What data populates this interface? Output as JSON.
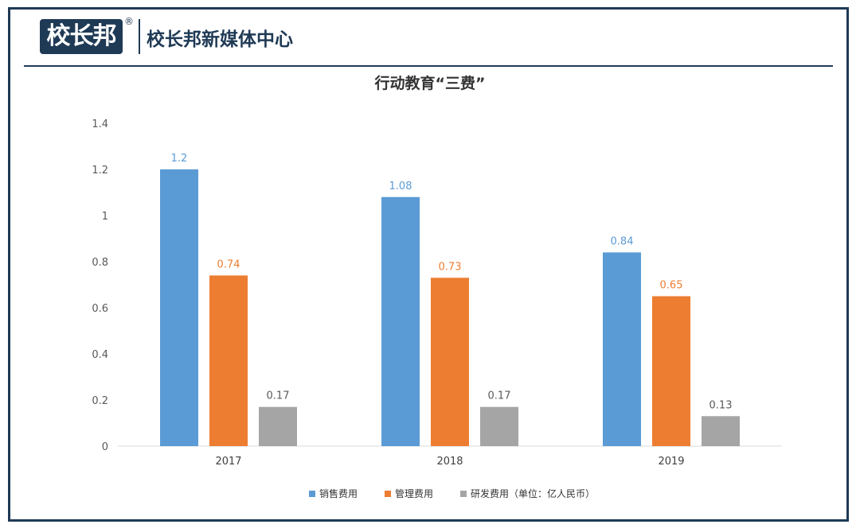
{
  "header": {
    "logo_text": "校长邦",
    "registered_mark": "®",
    "org_name": "校长邦新媒体中心"
  },
  "colors": {
    "frame": "#1f3a55",
    "series": [
      "#5b9bd5",
      "#ed7d31",
      "#a5a5a5"
    ]
  },
  "chart_data": {
    "type": "bar",
    "title": "行动教育“三费”",
    "categories": [
      "2017",
      "2018",
      "2019"
    ],
    "series": [
      {
        "name": "销售费用",
        "values": [
          1.2,
          1.08,
          0.84
        ],
        "labels": [
          "1.2",
          "1.08",
          "0.84"
        ]
      },
      {
        "name": "管理费用",
        "values": [
          0.74,
          0.73,
          0.65
        ],
        "labels": [
          "0.74",
          "0.73",
          "0.65"
        ]
      },
      {
        "name": "研发费用（单位：亿人民币）",
        "values": [
          0.17,
          0.17,
          0.13
        ],
        "labels": [
          "0.17",
          "0.17",
          "0.13"
        ]
      }
    ],
    "ylim": [
      0,
      1.4
    ],
    "yticks": [
      "0",
      "0.2",
      "0.4",
      "0.6",
      "0.8",
      "1",
      "1.2",
      "1.4"
    ],
    "grid": false,
    "legend_position": "bottom",
    "xlabel": "",
    "ylabel": ""
  }
}
